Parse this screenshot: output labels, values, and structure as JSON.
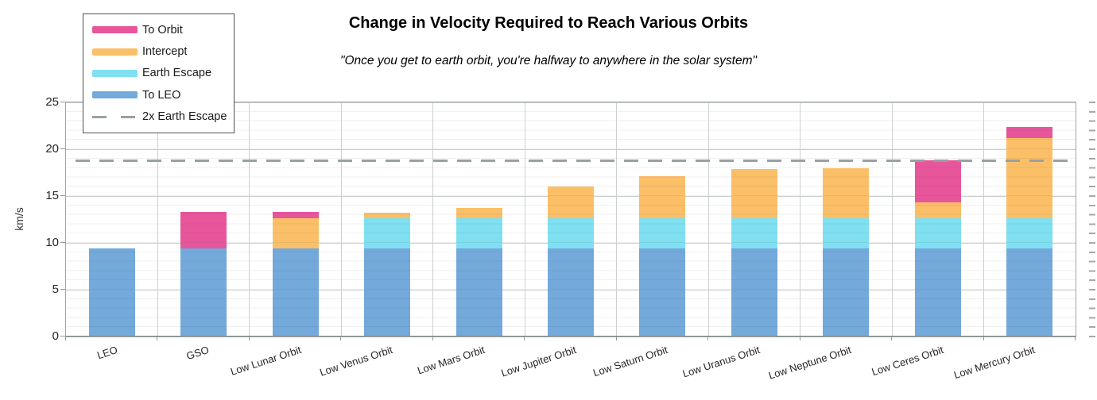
{
  "title": "Change in Velocity Required to Reach Various Orbits",
  "subtitle": "\"Once you get to earth orbit, you're halfway to anywhere in the solar system\"",
  "y_axis": {
    "label": "km/s",
    "ticks": [
      0,
      5,
      10,
      15,
      20,
      25
    ],
    "minor_step": 1,
    "max": 25
  },
  "legend": {
    "items": [
      {
        "label": "To Orbit",
        "color": "#e7559b",
        "type": "bar"
      },
      {
        "label": "Intercept",
        "color": "#fbbf67",
        "type": "bar"
      },
      {
        "label": "Earth Escape",
        "color": "#7fe0f1",
        "type": "bar"
      },
      {
        "label": "To LEO",
        "color": "#73a9db",
        "type": "bar"
      },
      {
        "label": "2x Earth Escape",
        "color": "#98a1a1",
        "type": "dashed-line"
      }
    ]
  },
  "chart_data": {
    "type": "bar",
    "stacked": true,
    "title": "Change in Velocity Required to Reach Various Orbits",
    "xlabel": "",
    "ylabel": "km/s",
    "ylim": [
      0,
      25
    ],
    "grid": true,
    "legend_position": "top-left",
    "categories": [
      "LEO",
      "GSO",
      "Low Lunar Orbit",
      "Low Venus Orbit",
      "Low Mars Orbit",
      "Low Jupiter Orbit",
      "Low Saturn Orbit",
      "Low Uranus Orbit",
      "Low Neptune Orbit",
      "Low Ceres Orbit",
      "Low Mercury Orbit"
    ],
    "series": [
      {
        "name": "To LEO",
        "color": "#73a9db",
        "values": [
          9.4,
          9.4,
          9.4,
          9.4,
          9.4,
          9.4,
          9.4,
          9.4,
          9.4,
          9.4,
          9.4
        ]
      },
      {
        "name": "Earth Escape",
        "color": "#7fe0f1",
        "values": [
          0,
          0,
          0,
          3.2,
          3.2,
          3.2,
          3.2,
          3.2,
          3.2,
          3.2,
          3.2
        ]
      },
      {
        "name": "Intercept",
        "color": "#fbbf67",
        "values": [
          0,
          0,
          3.2,
          0.6,
          1.1,
          3.4,
          4.5,
          5.3,
          5.4,
          1.7,
          8.6
        ]
      },
      {
        "name": "To Orbit",
        "color": "#e7559b",
        "values": [
          0,
          3.9,
          0.7,
          0,
          0,
          0,
          0,
          0,
          0,
          4.5,
          1.2
        ]
      }
    ],
    "totals": [
      9.4,
      13.3,
      13.3,
      13.2,
      13.7,
      16.0,
      17.1,
      17.9,
      18.0,
      18.8,
      22.4
    ],
    "reference_line": {
      "label": "2x Earth Escape",
      "value": 18.8,
      "color": "#98a1a1",
      "style": "dashed"
    }
  }
}
